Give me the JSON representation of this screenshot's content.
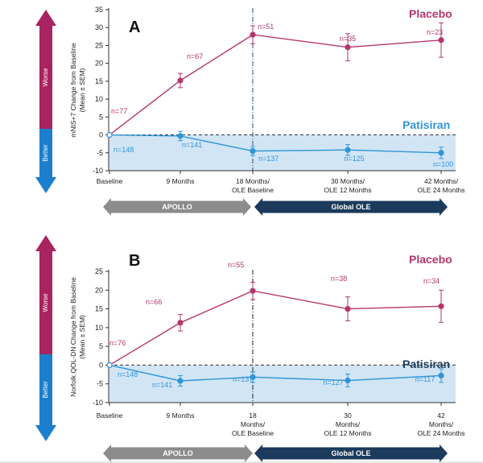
{
  "colors": {
    "placebo": "#B5366C",
    "patisiran": "#2F95D8",
    "worse": "#A8235F",
    "better": "#1B7FCD",
    "shade": "#D2E5F5",
    "apollo": "#8C8C8C",
    "global_ole": "#1B3A5C"
  },
  "arrow_labels": {
    "worse": "Worse",
    "better": "Better"
  },
  "phase_labels": {
    "apollo": "APOLLO",
    "global_ole": "Global OLE"
  },
  "chart_data": [
    {
      "type": "line",
      "panel": "A",
      "ylabel": "mNIS+7 Change from Baseline",
      "ylabel2": "(Mean ± SEM)",
      "ylim": [
        -10,
        35
      ],
      "yticks": [
        -10,
        -5,
        0,
        5,
        10,
        15,
        20,
        25,
        30,
        35
      ],
      "categories": [
        [
          "Baseline"
        ],
        [
          "9 Months"
        ],
        [
          "18 Months/",
          "OLE Baseline"
        ],
        [
          "30 Months/",
          "OLE 12 Months"
        ],
        [
          "42 Months/",
          "OLE 24 Months"
        ]
      ],
      "series": [
        {
          "name": "Placebo",
          "values": [
            0,
            15.2,
            28,
            24.5,
            26.5
          ],
          "errors": [
            0.3,
            2,
            2.5,
            3.8,
            4.8
          ],
          "n_labels": [
            "n=77",
            "n=67",
            "n=51",
            "n=35",
            "n=23"
          ]
        },
        {
          "name": "Patisiran",
          "values": [
            0,
            -0.3,
            -4.5,
            -4.2,
            -5
          ],
          "errors": [
            0.3,
            1.3,
            1.2,
            1.5,
            1.6
          ],
          "n_labels": [
            "n=148",
            "n=141",
            "n=137",
            "n=125",
            "n=100"
          ]
        }
      ]
    },
    {
      "type": "line",
      "panel": "B",
      "ylabel": "Norfolk QOL-DN Change from Baseline",
      "ylabel2": "(Mean ± SEM)",
      "ylim": [
        -10,
        25
      ],
      "yticks": [
        -10,
        -5,
        0,
        5,
        10,
        15,
        20,
        25
      ],
      "categories": [
        [
          "Baseline"
        ],
        [
          "9 Months"
        ],
        [
          "18",
          "Months/",
          "OLE Baseline"
        ],
        [
          "30",
          "Months/",
          "OLE 12 Months"
        ],
        [
          "42",
          "Months/",
          "OLE 24 Months"
        ]
      ],
      "series": [
        {
          "name": "Placebo",
          "values": [
            0,
            11.3,
            19.8,
            15,
            15.7
          ],
          "errors": [
            0.3,
            2.2,
            2.3,
            3.2,
            4.3
          ],
          "n_labels": [
            "n=76",
            "n=66",
            "n=55",
            "n=38",
            "n=34"
          ]
        },
        {
          "name": "Patisiran",
          "values": [
            0,
            -4.2,
            -3.2,
            -4.1,
            -2.8
          ],
          "errors": [
            0.3,
            1.4,
            1.4,
            1.7,
            1.8
          ],
          "n_labels": [
            "n=148",
            "n=141",
            "n=137",
            "n=127",
            "n=117"
          ]
        }
      ]
    }
  ]
}
